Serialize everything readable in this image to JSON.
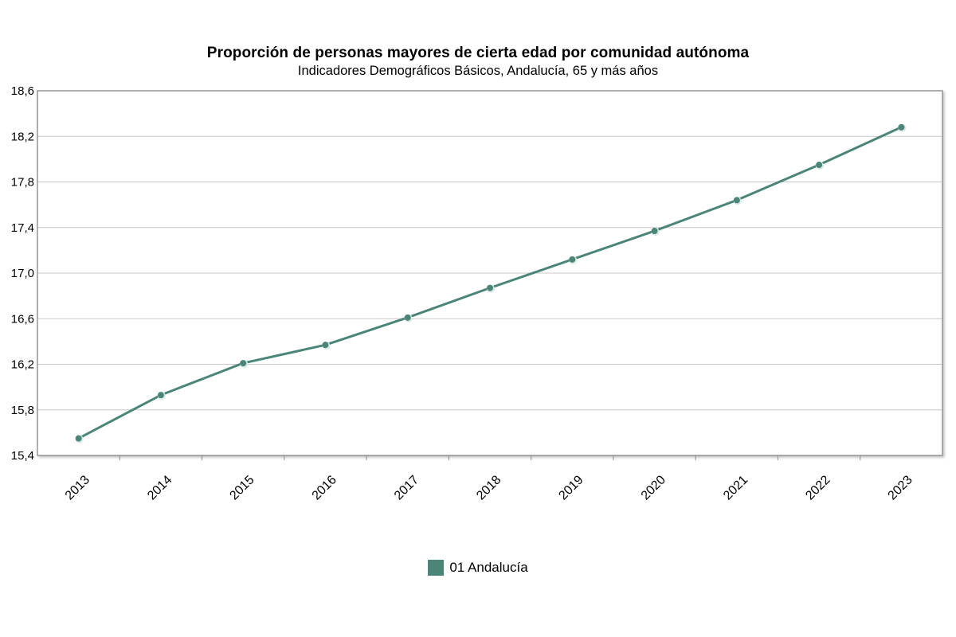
{
  "colors": {
    "series": "#4a8578",
    "grid": "#c8c8c8",
    "frame": "#8a8a8a",
    "marker_halo": "#d8e8e4"
  },
  "chart_data": {
    "type": "line",
    "title": "Proporción de personas mayores de cierta edad por comunidad autónoma",
    "subtitle": "Indicadores Demográficos Básicos, Andalucía, 65 y más años",
    "xlabel": "",
    "ylabel": "",
    "categories": [
      "2013",
      "2014",
      "2015",
      "2016",
      "2017",
      "2018",
      "2019",
      "2020",
      "2021",
      "2022",
      "2023"
    ],
    "series": [
      {
        "name": "01 Andalucía",
        "values": [
          15.55,
          15.93,
          16.21,
          16.37,
          16.61,
          16.87,
          17.12,
          17.37,
          17.64,
          17.95,
          18.28
        ]
      }
    ],
    "ylim": [
      15.4,
      18.6
    ],
    "yticks": [
      15.4,
      15.8,
      16.2,
      16.6,
      17.0,
      17.4,
      17.8,
      18.2,
      18.6
    ],
    "ytick_labels": [
      "15,4",
      "15,8",
      "16,2",
      "16,6",
      "17,0",
      "17,4",
      "17,8",
      "18,2",
      "18,6"
    ],
    "grid": true,
    "legend_position": "bottom-center"
  }
}
